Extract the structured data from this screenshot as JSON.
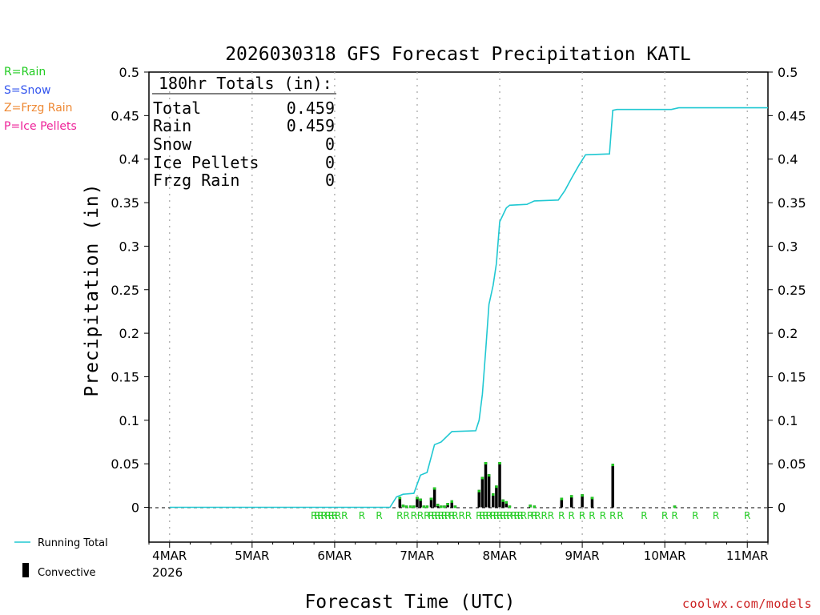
{
  "chart_data": {
    "type": "bar+line",
    "title": "2026030318 GFS Forecast Precipitation KATL",
    "xlabel": "Forecast Time (UTC)",
    "ylabel": "Precipitation (in)",
    "ylim": [
      -0.04,
      0.5
    ],
    "xlim": [
      -0.25,
      7.25
    ],
    "y_ticks": [
      0,
      0.05,
      0.1,
      0.15,
      0.2,
      0.25,
      0.3,
      0.35,
      0.4,
      0.45,
      0.5
    ],
    "y_tick_labels": [
      "0",
      "0.05",
      "0.1",
      "0.15",
      "0.2",
      "0.25",
      "0.3",
      "0.35",
      "0.4",
      "0.45",
      "0.5"
    ],
    "x_ticks": [
      0,
      1,
      2,
      3,
      4,
      5,
      6,
      7
    ],
    "x_tick_labels": [
      "4MAR",
      "5MAR",
      "6MAR",
      "7MAR",
      "8MAR",
      "9MAR",
      "10MAR",
      "11MAR"
    ],
    "x_year_label": "2026",
    "totals_box": {
      "heading": "180hr Totals (in):",
      "rows": [
        {
          "label": "Total",
          "value": "0.459"
        },
        {
          "label": "Rain",
          "value": "0.459"
        },
        {
          "label": "Snow",
          "value": "0"
        },
        {
          "label": "Ice Pellets",
          "value": "0"
        },
        {
          "label": "Frzg Rain",
          "value": "0"
        }
      ]
    },
    "ptype_legend": [
      {
        "text": "R=Rain",
        "color": "#22cc22"
      },
      {
        "text": "S=Snow",
        "color": "#3355ee"
      },
      {
        "text": "Z=Frzg Rain",
        "color": "#ee8833"
      },
      {
        "text": "P=Ice Pellets",
        "color": "#ee2299"
      }
    ],
    "series_legend": [
      {
        "name": "Running Total",
        "color": "#20c8d2",
        "kind": "line"
      },
      {
        "name": "Convective",
        "color": "#000000",
        "kind": "bar"
      }
    ],
    "bar_color": "#000000",
    "bar_top_color": "#22cc22",
    "line_color": "#20c8d2",
    "bars": [
      {
        "t": 2.79,
        "v": 0.012
      },
      {
        "t": 2.83,
        "v": 0.003
      },
      {
        "t": 2.87,
        "v": 0.002
      },
      {
        "t": 2.92,
        "v": 0.002
      },
      {
        "t": 2.96,
        "v": 0.002
      },
      {
        "t": 3.0,
        "v": 0.012
      },
      {
        "t": 3.04,
        "v": 0.01
      },
      {
        "t": 3.08,
        "v": 0.002
      },
      {
        "t": 3.12,
        "v": 0.002
      },
      {
        "t": 3.17,
        "v": 0.011
      },
      {
        "t": 3.21,
        "v": 0.023
      },
      {
        "t": 3.25,
        "v": 0.004
      },
      {
        "t": 3.29,
        "v": 0.002
      },
      {
        "t": 3.33,
        "v": 0.002
      },
      {
        "t": 3.37,
        "v": 0.005
      },
      {
        "t": 3.42,
        "v": 0.008
      },
      {
        "t": 3.46,
        "v": 0.002
      },
      {
        "t": 3.75,
        "v": 0.02
      },
      {
        "t": 3.79,
        "v": 0.035
      },
      {
        "t": 3.83,
        "v": 0.052
      },
      {
        "t": 3.87,
        "v": 0.038
      },
      {
        "t": 3.92,
        "v": 0.016
      },
      {
        "t": 3.96,
        "v": 0.025
      },
      {
        "t": 4.0,
        "v": 0.052
      },
      {
        "t": 4.04,
        "v": 0.009
      },
      {
        "t": 4.08,
        "v": 0.007
      },
      {
        "t": 4.12,
        "v": 0.002
      },
      {
        "t": 4.37,
        "v": 0.003
      },
      {
        "t": 4.42,
        "v": 0.002
      },
      {
        "t": 4.75,
        "v": 0.011
      },
      {
        "t": 4.87,
        "v": 0.014
      },
      {
        "t": 5.0,
        "v": 0.015
      },
      {
        "t": 5.12,
        "v": 0.012
      },
      {
        "t": 5.37,
        "v": 0.05
      },
      {
        "t": 6.12,
        "v": 0.002
      }
    ],
    "running_total": [
      [
        0,
        0
      ],
      [
        2.67,
        0
      ],
      [
        2.75,
        0.012
      ],
      [
        2.83,
        0.015
      ],
      [
        2.96,
        0.016
      ],
      [
        3.04,
        0.037
      ],
      [
        3.12,
        0.04
      ],
      [
        3.21,
        0.072
      ],
      [
        3.29,
        0.075
      ],
      [
        3.42,
        0.087
      ],
      [
        3.71,
        0.088
      ],
      [
        3.75,
        0.1
      ],
      [
        3.79,
        0.13
      ],
      [
        3.83,
        0.18
      ],
      [
        3.87,
        0.233
      ],
      [
        3.92,
        0.255
      ],
      [
        3.96,
        0.28
      ],
      [
        4.0,
        0.328
      ],
      [
        4.08,
        0.344
      ],
      [
        4.12,
        0.347
      ],
      [
        4.33,
        0.348
      ],
      [
        4.42,
        0.352
      ],
      [
        4.71,
        0.353
      ],
      [
        4.79,
        0.364
      ],
      [
        4.87,
        0.378
      ],
      [
        4.96,
        0.393
      ],
      [
        5.04,
        0.405
      ],
      [
        5.33,
        0.406
      ],
      [
        5.37,
        0.456
      ],
      [
        5.42,
        0.457
      ],
      [
        6.08,
        0.457
      ],
      [
        6.17,
        0.459
      ],
      [
        7.25,
        0.459
      ]
    ],
    "ptype_markers": {
      "symbol": "R",
      "times": [
        1.75,
        1.79,
        1.83,
        1.87,
        1.92,
        1.96,
        2.0,
        2.04,
        2.12,
        2.33,
        2.54,
        2.79,
        2.87,
        2.96,
        3.04,
        3.12,
        3.17,
        3.21,
        3.25,
        3.29,
        3.33,
        3.37,
        3.42,
        3.46,
        3.54,
        3.62,
        3.75,
        3.79,
        3.83,
        3.87,
        3.92,
        3.96,
        4.0,
        4.04,
        4.08,
        4.12,
        4.17,
        4.21,
        4.25,
        4.29,
        4.37,
        4.42,
        4.46,
        4.54,
        4.62,
        4.75,
        4.87,
        5.0,
        5.12,
        5.25,
        5.37,
        5.46,
        5.75,
        6.0,
        6.12,
        6.37,
        6.62,
        7.0
      ]
    }
  },
  "footer": {
    "website": "coolwx.com/models"
  }
}
